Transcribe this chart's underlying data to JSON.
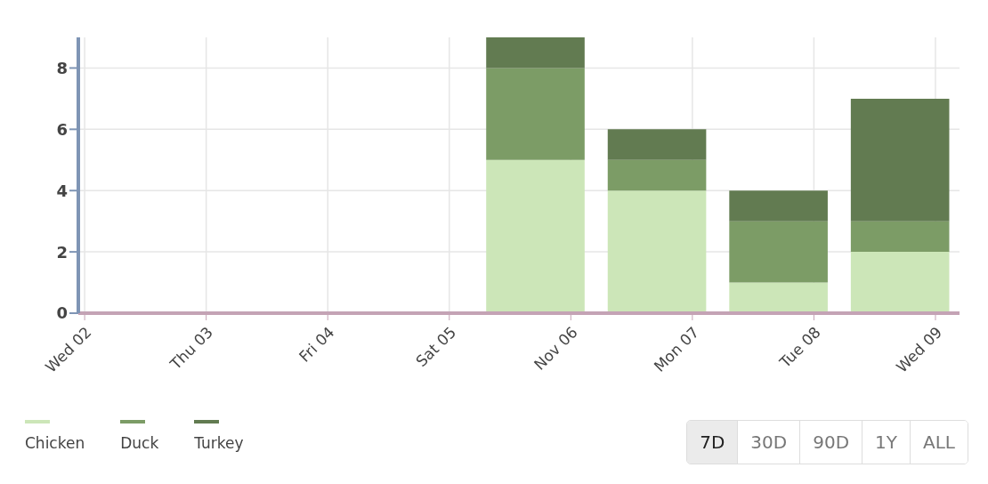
{
  "chart_data": {
    "type": "bar",
    "stacked": true,
    "x": [
      "--11-05T17:00",
      "--11-06T17:00",
      "--11-07T17:00",
      "--11-08T17:00"
    ],
    "series": [
      {
        "name": "Chicken",
        "color": "#cce6b8",
        "values": [
          5,
          4,
          1,
          2
        ]
      },
      {
        "name": "Duck",
        "color": "#7c9c66",
        "values": [
          3,
          1,
          2,
          1
        ]
      },
      {
        "name": "Turkey",
        "color": "#627b51",
        "values": [
          1,
          1,
          1,
          4
        ]
      }
    ],
    "xlim": [
      "--11-01T22:45",
      "--11-09T04:45"
    ],
    "xticks": [
      {
        "value": "--11-02",
        "label": "Wed 02"
      },
      {
        "value": "--11-03",
        "label": "Thu 03"
      },
      {
        "value": "--11-04",
        "label": "Fri 04"
      },
      {
        "value": "--11-05",
        "label": "Sat 05"
      },
      {
        "value": "--11-06",
        "label": "Nov 06"
      },
      {
        "value": "--11-07",
        "label": "Mon 07"
      },
      {
        "value": "--11-08",
        "label": "Tue 08"
      },
      {
        "value": "--11-09",
        "label": "Wed 09"
      }
    ],
    "ylim": [
      0,
      9
    ],
    "yticks": [
      0,
      2,
      4,
      6,
      8
    ],
    "grid": true,
    "legend": "bottom left",
    "annotations": [
      "7D",
      "30D",
      "90D",
      "1Y",
      "ALL"
    ]
  }
}
